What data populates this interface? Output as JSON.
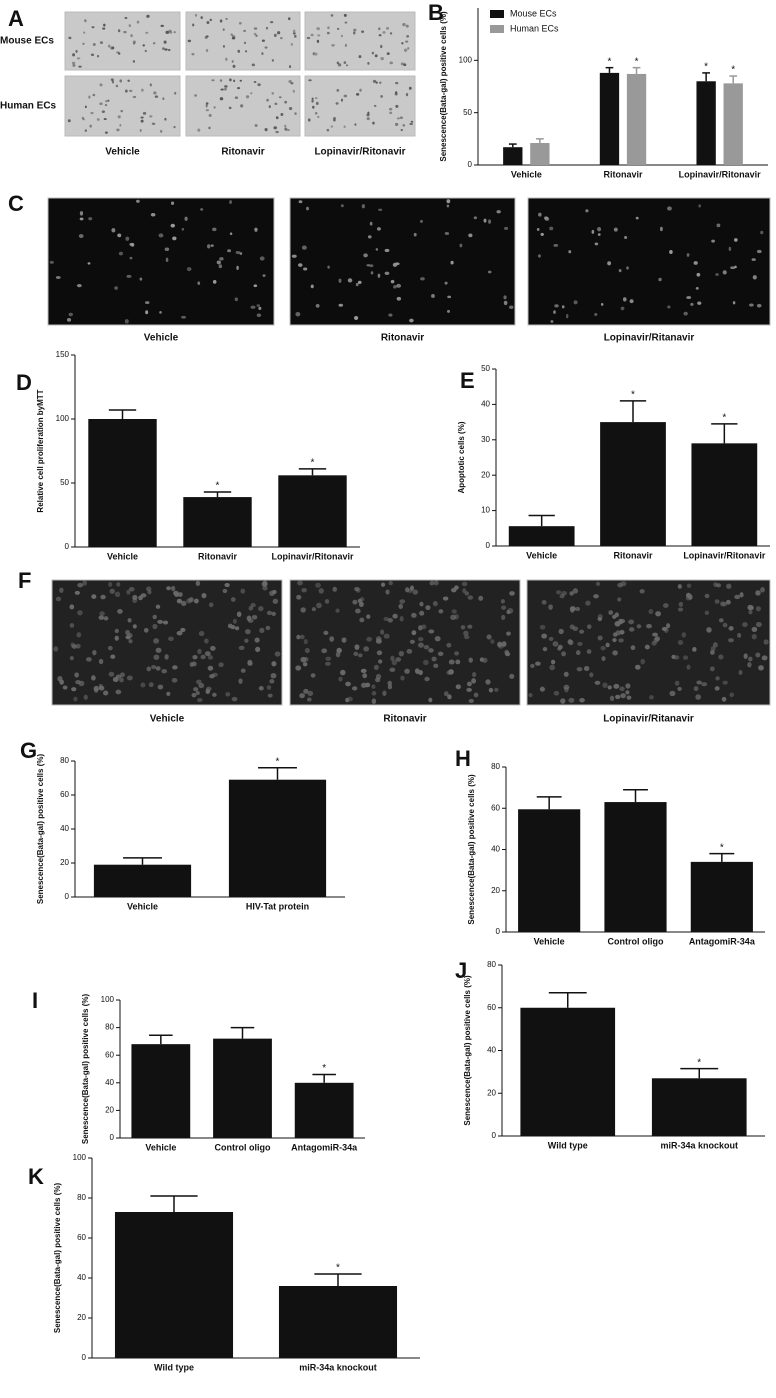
{
  "figures": [
    {
      "panel": "A",
      "row_labels": [
        "Mouse  ECs",
        "Human ECs"
      ],
      "column_labels": [
        "Vehicle",
        "Ritonavir",
        "Lopinavir/Ritonavir"
      ]
    },
    {
      "panel": "C",
      "column_labels": [
        "Vehicle",
        "Ritonavir",
        "Lopinavir/Ritanavir"
      ]
    },
    {
      "panel": "F",
      "column_labels": [
        "Vehicle",
        "Ritonavir",
        "Lopinavir/Ritanavir"
      ]
    }
  ],
  "chart_data": [
    {
      "panel": "B",
      "type": "bar",
      "y_label": "Senescence(Bata-gal) positive cells (%)",
      "categories": [
        "Vehicle",
        "Ritonavir",
        "Lopinavir/Ritonavir"
      ],
      "series": [
        {
          "name": "Mouse ECs",
          "color": "#111111",
          "values": [
            17,
            88,
            80
          ],
          "errors": [
            3,
            5,
            8
          ],
          "stars": [
            null,
            "*",
            "*"
          ]
        },
        {
          "name": "Human ECs",
          "color": "#999999",
          "values": [
            21,
            87,
            78
          ],
          "errors": [
            4,
            6,
            7
          ],
          "stars": [
            null,
            "*",
            "*"
          ]
        }
      ],
      "ylim": [
        0,
        150
      ],
      "yticks": [
        0,
        50,
        100
      ],
      "legend": "upper left"
    },
    {
      "panel": "D",
      "type": "bar",
      "y_label": "Relative cell proliferation byMTT",
      "categories": [
        "Vehicle",
        "Ritonavir",
        "Lopinavir/Ritonavir"
      ],
      "series": [
        {
          "color": "#111111",
          "values": [
            100,
            39,
            56
          ],
          "errors": [
            7,
            4,
            5
          ],
          "stars": [
            null,
            "*",
            "*"
          ]
        }
      ],
      "ylim": [
        0,
        150
      ],
      "yticks": [
        0,
        50,
        100,
        150
      ]
    },
    {
      "panel": "E",
      "type": "bar",
      "y_label": "Apoptotic cells (%)",
      "categories": [
        "Vehicle",
        "Ritonavir",
        "Lopinavir/Ritonavir"
      ],
      "series": [
        {
          "color": "#111111",
          "values": [
            5.6,
            35,
            29
          ],
          "errors": [
            3,
            6,
            5.5
          ],
          "stars": [
            null,
            "*",
            "*"
          ]
        }
      ],
      "ylim": [
        0,
        50
      ],
      "yticks": [
        0,
        10,
        20,
        30,
        40,
        50
      ]
    },
    {
      "panel": "G",
      "type": "bar",
      "y_label": "Senescence(Bata-gal) positive cells (%)",
      "categories": [
        "Vehicle",
        "HIV-Tat protein"
      ],
      "series": [
        {
          "color": "#111111",
          "values": [
            19,
            69
          ],
          "errors": [
            4,
            7
          ],
          "stars": [
            null,
            "*"
          ]
        }
      ],
      "ylim": [
        0,
        80
      ],
      "yticks": [
        0,
        20,
        40,
        60,
        80
      ]
    },
    {
      "panel": "H",
      "type": "bar",
      "y_label": "Senescence(Bata-gal) positive cells (%)",
      "categories": [
        "Vehicle",
        "Control oligo",
        "AntagomiR-34a"
      ],
      "series": [
        {
          "color": "#111111",
          "values": [
            59.5,
            63,
            34
          ],
          "errors": [
            6,
            6,
            4
          ],
          "stars": [
            null,
            null,
            "*"
          ]
        }
      ],
      "ylim": [
        0,
        80
      ],
      "yticks": [
        0,
        20,
        40,
        60,
        80
      ]
    },
    {
      "panel": "I",
      "type": "bar",
      "y_label": "Senescence(Bata-gal) positive cells (%)",
      "categories": [
        "Vehicle",
        "Control oligo",
        "AntagomiR-34a"
      ],
      "series": [
        {
          "color": "#111111",
          "values": [
            68,
            72,
            40
          ],
          "errors": [
            6.5,
            8,
            6
          ],
          "stars": [
            null,
            null,
            "*"
          ]
        }
      ],
      "ylim": [
        0,
        100
      ],
      "yticks": [
        0,
        20,
        40,
        60,
        80,
        100
      ]
    },
    {
      "panel": "J",
      "type": "bar",
      "y_label": "Senescence(Bata-gal) positive cells (%)",
      "categories": [
        "Wild type",
        "miR-34a knockout"
      ],
      "series": [
        {
          "color": "#111111",
          "values": [
            60,
            27
          ],
          "errors": [
            7,
            4.5
          ],
          "stars": [
            null,
            "*"
          ]
        }
      ],
      "ylim": [
        0,
        80
      ],
      "yticks": [
        0,
        20,
        40,
        60,
        80
      ]
    },
    {
      "panel": "K",
      "type": "bar",
      "y_label": "Senescence(Bata-gal) positive cells (%)",
      "categories": [
        "Wild type",
        "miR-34a knockout"
      ],
      "series": [
        {
          "color": "#111111",
          "values": [
            73,
            36
          ],
          "errors": [
            8,
            6
          ],
          "stars": [
            null,
            "*"
          ]
        }
      ],
      "ylim": [
        0,
        100
      ],
      "yticks": [
        0,
        20,
        40,
        60,
        80,
        100
      ]
    }
  ]
}
